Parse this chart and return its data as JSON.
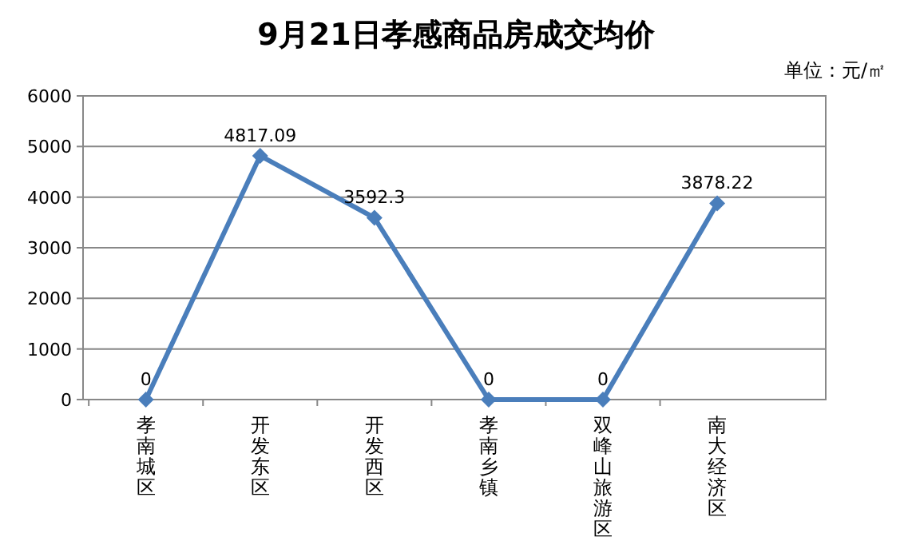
{
  "chart_data": {
    "type": "line",
    "title": "9月21日孝感商品房成交均价",
    "annotations": [
      "单位：元/㎡"
    ],
    "categories": [
      "孝南城区",
      "开发东区",
      "开发西区",
      "孝南乡镇",
      "双峰山旅游区",
      "南大经济区"
    ],
    "series": [
      {
        "color": "#4a7ebb",
        "values": [
          0,
          4817.09,
          3592.3,
          0,
          0,
          3878.22
        ]
      }
    ],
    "ylim": [
      0,
      6000
    ],
    "yticks": [
      0,
      1000,
      2000,
      3000,
      4000,
      5000,
      6000
    ],
    "grid": "y",
    "marker": "diamond",
    "line_style": "solid",
    "data_labels": true
  }
}
